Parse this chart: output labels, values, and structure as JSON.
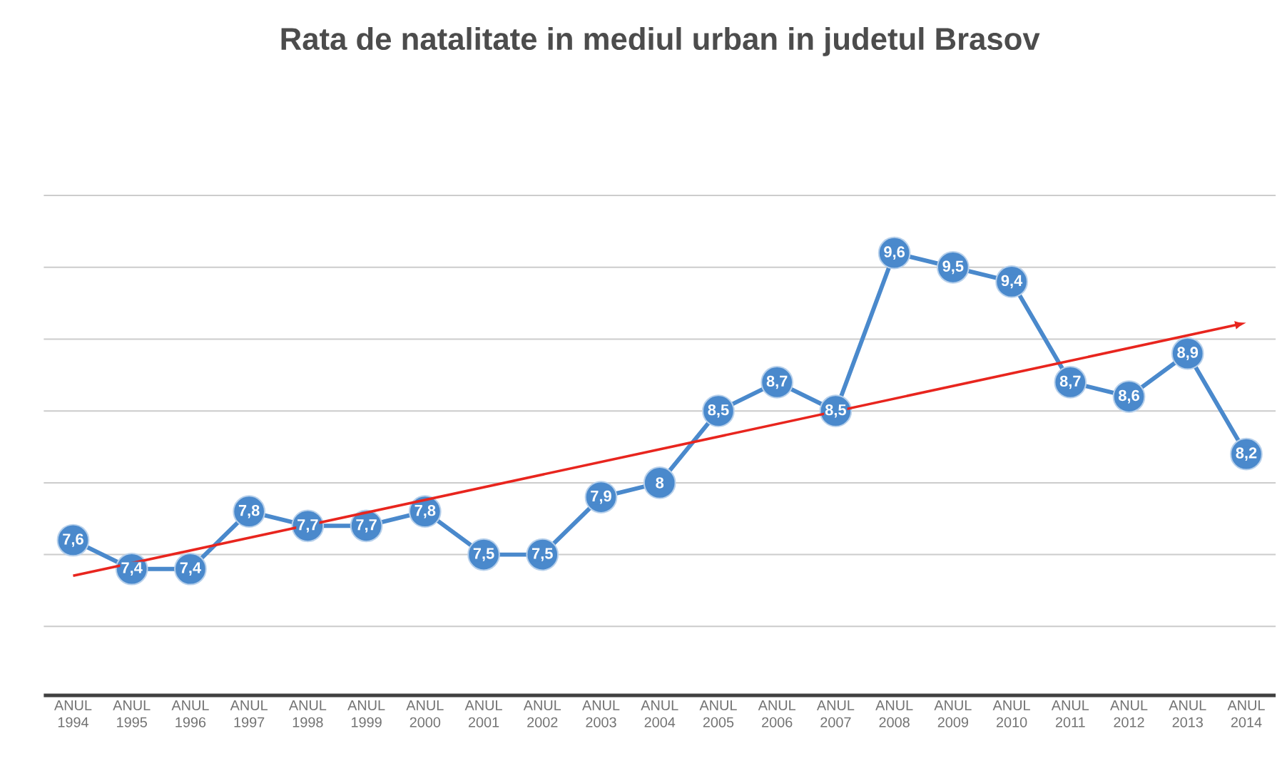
{
  "chart_data": {
    "type": "line",
    "title": "Rata de natalitate in mediul urban in judetul Brasov",
    "categories": [
      "ANUL 1994",
      "ANUL 1995",
      "ANUL 1996",
      "ANUL 1997",
      "ANUL 1998",
      "ANUL 1999",
      "ANUL 2000",
      "ANUL 2001",
      "ANUL 2002",
      "ANUL 2003",
      "ANUL 2004",
      "ANUL 2005",
      "ANUL 2006",
      "ANUL 2007",
      "ANUL 2008",
      "ANUL 2009",
      "ANUL 2010",
      "ANUL 2011",
      "ANUL 2012",
      "ANUL 2013",
      "ANUL 2014"
    ],
    "series": [
      {
        "color": "#4a89cc",
        "marker": "circle",
        "values": [
          7.6,
          7.4,
          7.4,
          7.8,
          7.7,
          7.7,
          7.8,
          7.5,
          7.5,
          7.9,
          8,
          8.5,
          8.7,
          8.5,
          9.6,
          9.5,
          9.4,
          8.7,
          8.6,
          8.9,
          8.2
        ],
        "value_labels": [
          "7,6",
          "7,4",
          "7,4",
          "7,8",
          "7,7",
          "7,7",
          "7,8",
          "7,5",
          "7,5",
          "7,9",
          "8",
          "8,5",
          "8,7",
          "8,5",
          "9,6",
          "9,5",
          "9,4",
          "8,7",
          "8,6",
          "8,9",
          "8,2"
        ]
      }
    ],
    "tick_labels": "x",
    "grid": "y"
  }
}
